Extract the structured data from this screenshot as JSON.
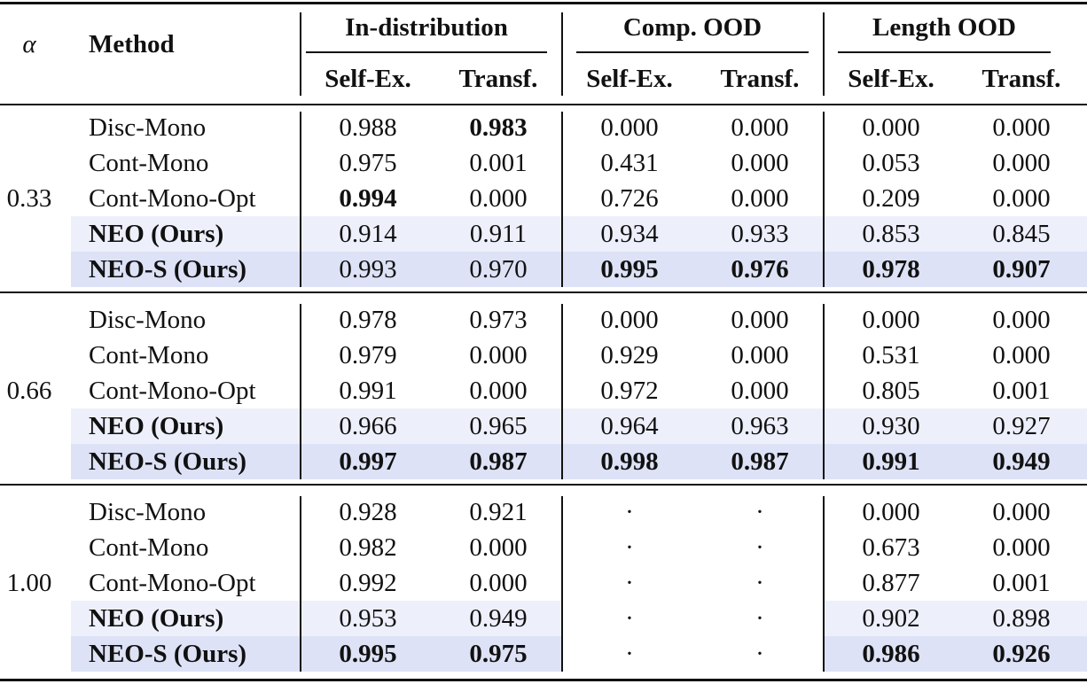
{
  "header": {
    "alpha": "α",
    "method": "Method",
    "groups": [
      "In-distribution",
      "Comp. OOD",
      "Length OOD"
    ],
    "subheaders": [
      "Self-Ex.",
      "Transf.",
      "Self-Ex.",
      "Transf.",
      "Self-Ex.",
      "Transf."
    ]
  },
  "blocks": [
    {
      "alpha": "0.33",
      "rows": [
        {
          "cells": [
            "Disc-Mono",
            "0.988",
            "0.983",
            "0.000",
            "0.000",
            "0.000",
            "0.000"
          ],
          "bold": [
            2
          ]
        },
        {
          "cells": [
            "Cont-Mono",
            "0.975",
            "0.001",
            "0.431",
            "0.000",
            "0.053",
            "0.000"
          ],
          "bold": []
        },
        {
          "cells": [
            "Cont-Mono-Opt",
            "0.994",
            "0.000",
            "0.726",
            "0.000",
            "0.209",
            "0.000"
          ],
          "bold": [
            1
          ]
        },
        {
          "cells": [
            "NEO (Ours)",
            "0.914",
            "0.911",
            "0.934",
            "0.933",
            "0.853",
            "0.845"
          ],
          "bold": [
            0
          ],
          "shade": "#edf0fb"
        },
        {
          "cells": [
            "NEO-S (Ours)",
            "0.993",
            "0.970",
            "0.995",
            "0.976",
            "0.978",
            "0.907"
          ],
          "bold": [
            0,
            3,
            4,
            5,
            6
          ],
          "shade": "#dde2f6"
        }
      ]
    },
    {
      "alpha": "0.66",
      "rows": [
        {
          "cells": [
            "Disc-Mono",
            "0.978",
            "0.973",
            "0.000",
            "0.000",
            "0.000",
            "0.000"
          ],
          "bold": []
        },
        {
          "cells": [
            "Cont-Mono",
            "0.979",
            "0.000",
            "0.929",
            "0.000",
            "0.531",
            "0.000"
          ],
          "bold": []
        },
        {
          "cells": [
            "Cont-Mono-Opt",
            "0.991",
            "0.000",
            "0.972",
            "0.000",
            "0.805",
            "0.001"
          ],
          "bold": []
        },
        {
          "cells": [
            "NEO (Ours)",
            "0.966",
            "0.965",
            "0.964",
            "0.963",
            "0.930",
            "0.927"
          ],
          "bold": [
            0
          ],
          "shade": "#edf0fb"
        },
        {
          "cells": [
            "NEO-S (Ours)",
            "0.997",
            "0.987",
            "0.998",
            "0.987",
            "0.991",
            "0.949"
          ],
          "bold": [
            0,
            1,
            2,
            3,
            4,
            5,
            6
          ],
          "shade": "#dde2f6"
        }
      ]
    },
    {
      "alpha": "1.00",
      "rows": [
        {
          "cells": [
            "Disc-Mono",
            "0.928",
            "0.921",
            "·",
            "·",
            "0.000",
            "0.000"
          ],
          "bold": []
        },
        {
          "cells": [
            "Cont-Mono",
            "0.982",
            "0.000",
            "·",
            "·",
            "0.673",
            "0.000"
          ],
          "bold": []
        },
        {
          "cells": [
            "Cont-Mono-Opt",
            "0.992",
            "0.000",
            "·",
            "·",
            "0.877",
            "0.001"
          ],
          "bold": []
        },
        {
          "cells": [
            "NEO (Ours)",
            "0.953",
            "0.949",
            "·",
            "·",
            "0.902",
            "0.898"
          ],
          "bold": [
            0
          ],
          "shade": "#edf0fb"
        },
        {
          "cells": [
            "NEO-S (Ours)",
            "0.995",
            "0.975",
            "·",
            "·",
            "0.986",
            "0.926"
          ],
          "bold": [
            0,
            1,
            2,
            5,
            6
          ],
          "shade": "#dde2f6"
        }
      ]
    }
  ]
}
